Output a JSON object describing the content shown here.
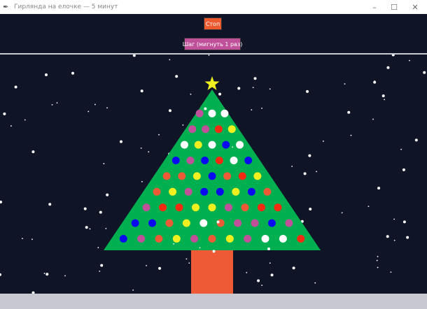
{
  "window": {
    "title": "Гирлянда на елочке — 5 минут",
    "minimize_icon": "minimize-icon",
    "maximize_icon": "maximize-icon",
    "close_icon": "close-icon"
  },
  "controls": {
    "stop_label": "Стоп",
    "step_label": "Шаг (мигнуть 1 раз)",
    "stop_color": "#ee5a30",
    "step_color": "#c0509a"
  },
  "colors": {
    "background": "#0f1526",
    "tree": "#00b050",
    "trunk": "#ee5a35",
    "star": "#f0f020",
    "pink": "#c0509a",
    "white": "#ffffff",
    "red": "#f52a10",
    "yellow": "#f0f020",
    "blue": "#0a0af0",
    "orange": "#ee5a35"
  },
  "ornaments": [
    [
      "pink",
      "white",
      "white"
    ],
    [
      "pink",
      "pink",
      "red",
      "yellow"
    ],
    [
      "white",
      "yellow",
      "white",
      "blue",
      "white"
    ],
    [
      "blue",
      "pink",
      "blue",
      "red",
      "white",
      "blue"
    ],
    [
      "orange",
      "orange",
      "yellow",
      "blue",
      "orange",
      "red",
      "yellow"
    ],
    [
      "orange",
      "yellow",
      "pink",
      "blue",
      "blue",
      "yellow",
      "blue",
      "orange"
    ],
    [
      "pink",
      "red",
      "red",
      "yellow",
      "yellow",
      "pink",
      "orange",
      "red",
      "red"
    ],
    [
      "blue",
      "blue",
      "orange",
      "yellow",
      "white",
      "orange",
      "pink",
      "pink",
      "blue",
      "pink"
    ],
    [
      "blue",
      "pink",
      "orange",
      "yellow",
      "pink",
      "orange",
      "yellow",
      "pink",
      "white",
      "white",
      "red"
    ]
  ]
}
